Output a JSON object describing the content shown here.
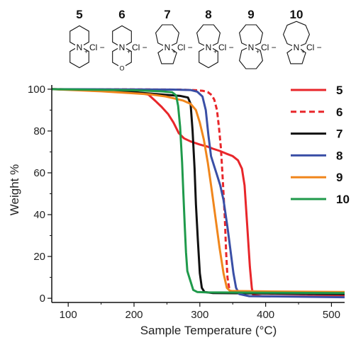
{
  "structures": [
    {
      "label": "5",
      "ring_a": 6,
      "ring_b": 6,
      "hetero": "",
      "counterion": "Cl",
      "charge": "+"
    },
    {
      "label": "6",
      "ring_a": 6,
      "ring_b": 6,
      "hetero": "O",
      "counterion": "Cl",
      "charge": "+"
    },
    {
      "label": "7",
      "ring_a": 7,
      "ring_b": 5,
      "hetero": "",
      "counterion": "Cl",
      "charge": "+"
    },
    {
      "label": "8",
      "ring_a": 7,
      "ring_b": 6,
      "hetero": "",
      "counterion": "Cl",
      "charge": "+"
    },
    {
      "label": "9",
      "ring_a": 7,
      "ring_b": 7,
      "hetero": "",
      "counterion": "Cl",
      "charge": "+"
    },
    {
      "label": "10",
      "ring_a": 8,
      "ring_b": 5,
      "hetero": "",
      "counterion": "Cl",
      "charge": "+"
    }
  ],
  "atom_N": "N",
  "minus_sign": "−",
  "chart_data": {
    "type": "line",
    "title": "",
    "xlabel": "Sample Temperature (°C)",
    "ylabel": "Weight %",
    "xlim": [
      75,
      520
    ],
    "ylim": [
      -2,
      102
    ],
    "xticks": [
      100,
      200,
      300,
      400,
      500
    ],
    "yticks": [
      0,
      20,
      40,
      60,
      80,
      100
    ],
    "grid": false,
    "legend_position": "right",
    "series": [
      {
        "name": "5",
        "color": "#e8262a",
        "dash": "solid",
        "points": [
          [
            75,
            100
          ],
          [
            150,
            99.6
          ],
          [
            205,
            98.5
          ],
          [
            222,
            97.4
          ],
          [
            232,
            94.5
          ],
          [
            242,
            91.5
          ],
          [
            252,
            88
          ],
          [
            260,
            84
          ],
          [
            268,
            79
          ],
          [
            276,
            76.5
          ],
          [
            286,
            75
          ],
          [
            300,
            73.5
          ],
          [
            312,
            72.5
          ],
          [
            320,
            71.5
          ],
          [
            330,
            70.5
          ],
          [
            340,
            69.2
          ],
          [
            350,
            68
          ],
          [
            358,
            66
          ],
          [
            364,
            62
          ],
          [
            368,
            54
          ],
          [
            372,
            35
          ],
          [
            376,
            15
          ],
          [
            379,
            5
          ],
          [
            381,
            1.5
          ],
          [
            395,
            1
          ],
          [
            520,
            1
          ]
        ]
      },
      {
        "name": "6",
        "color": "#e8262a",
        "dash": "dashed",
        "points": [
          [
            75,
            100
          ],
          [
            200,
            99.9
          ],
          [
            270,
            99.8
          ],
          [
            295,
            99.5
          ],
          [
            305,
            99.2
          ],
          [
            312,
            98.6
          ],
          [
            318,
            97.2
          ],
          [
            322,
            95
          ],
          [
            326,
            90
          ],
          [
            329,
            82
          ],
          [
            332,
            72
          ],
          [
            335,
            56
          ],
          [
            338,
            38
          ],
          [
            340,
            22
          ],
          [
            342,
            10
          ],
          [
            345,
            4
          ],
          [
            352,
            2.5
          ],
          [
            520,
            2
          ]
        ]
      },
      {
        "name": "7",
        "color": "#111111",
        "dash": "solid",
        "points": [
          [
            75,
            100
          ],
          [
            150,
            99.5
          ],
          [
            200,
            98.5
          ],
          [
            240,
            97.5
          ],
          [
            270,
            96.8
          ],
          [
            282,
            96
          ],
          [
            286,
            93
          ],
          [
            289,
            80
          ],
          [
            292,
            62
          ],
          [
            294,
            45
          ],
          [
            297,
            28
          ],
          [
            300,
            12
          ],
          [
            303,
            5
          ],
          [
            307,
            3
          ],
          [
            320,
            2.5
          ],
          [
            520,
            2
          ]
        ]
      },
      {
        "name": "8",
        "color": "#3a4fa6",
        "dash": "solid",
        "points": [
          [
            75,
            100
          ],
          [
            200,
            99.9
          ],
          [
            260,
            99.8
          ],
          [
            286,
            99.6
          ],
          [
            296,
            98.8
          ],
          [
            304,
            96.5
          ],
          [
            309,
            90
          ],
          [
            313,
            78
          ],
          [
            317,
            68
          ],
          [
            322,
            63
          ],
          [
            326,
            59
          ],
          [
            331,
            54
          ],
          [
            336,
            47
          ],
          [
            342,
            34
          ],
          [
            347,
            22
          ],
          [
            351,
            12
          ],
          [
            355,
            5
          ],
          [
            360,
            2
          ],
          [
            375,
            1
          ],
          [
            520,
            0.5
          ]
        ]
      },
      {
        "name": "9",
        "color": "#f0861c",
        "dash": "solid",
        "points": [
          [
            75,
            100
          ],
          [
            150,
            99
          ],
          [
            200,
            98
          ],
          [
            225,
            97.5
          ],
          [
            248,
            96.5
          ],
          [
            262,
            95.5
          ],
          [
            275,
            94.5
          ],
          [
            286,
            93
          ],
          [
            294,
            90
          ],
          [
            300,
            84
          ],
          [
            306,
            76
          ],
          [
            312,
            65
          ],
          [
            318,
            52
          ],
          [
            324,
            38
          ],
          [
            330,
            24
          ],
          [
            336,
            12
          ],
          [
            341,
            5
          ],
          [
            346,
            3.5
          ],
          [
            400,
            3.3
          ],
          [
            520,
            3
          ]
        ]
      },
      {
        "name": "10",
        "color": "#1f9a4b",
        "dash": "solid",
        "points": [
          [
            75,
            100
          ],
          [
            200,
            99.5
          ],
          [
            240,
            99
          ],
          [
            258,
            98.5
          ],
          [
            264,
            97
          ],
          [
            267,
            92
          ],
          [
            270,
            82
          ],
          [
            273,
            65
          ],
          [
            275,
            50
          ],
          [
            277,
            35
          ],
          [
            279,
            22
          ],
          [
            281,
            13
          ],
          [
            283,
            11
          ],
          [
            286,
            8
          ],
          [
            290,
            4
          ],
          [
            296,
            3
          ],
          [
            310,
            2.8
          ],
          [
            520,
            2.5
          ]
        ]
      }
    ]
  }
}
